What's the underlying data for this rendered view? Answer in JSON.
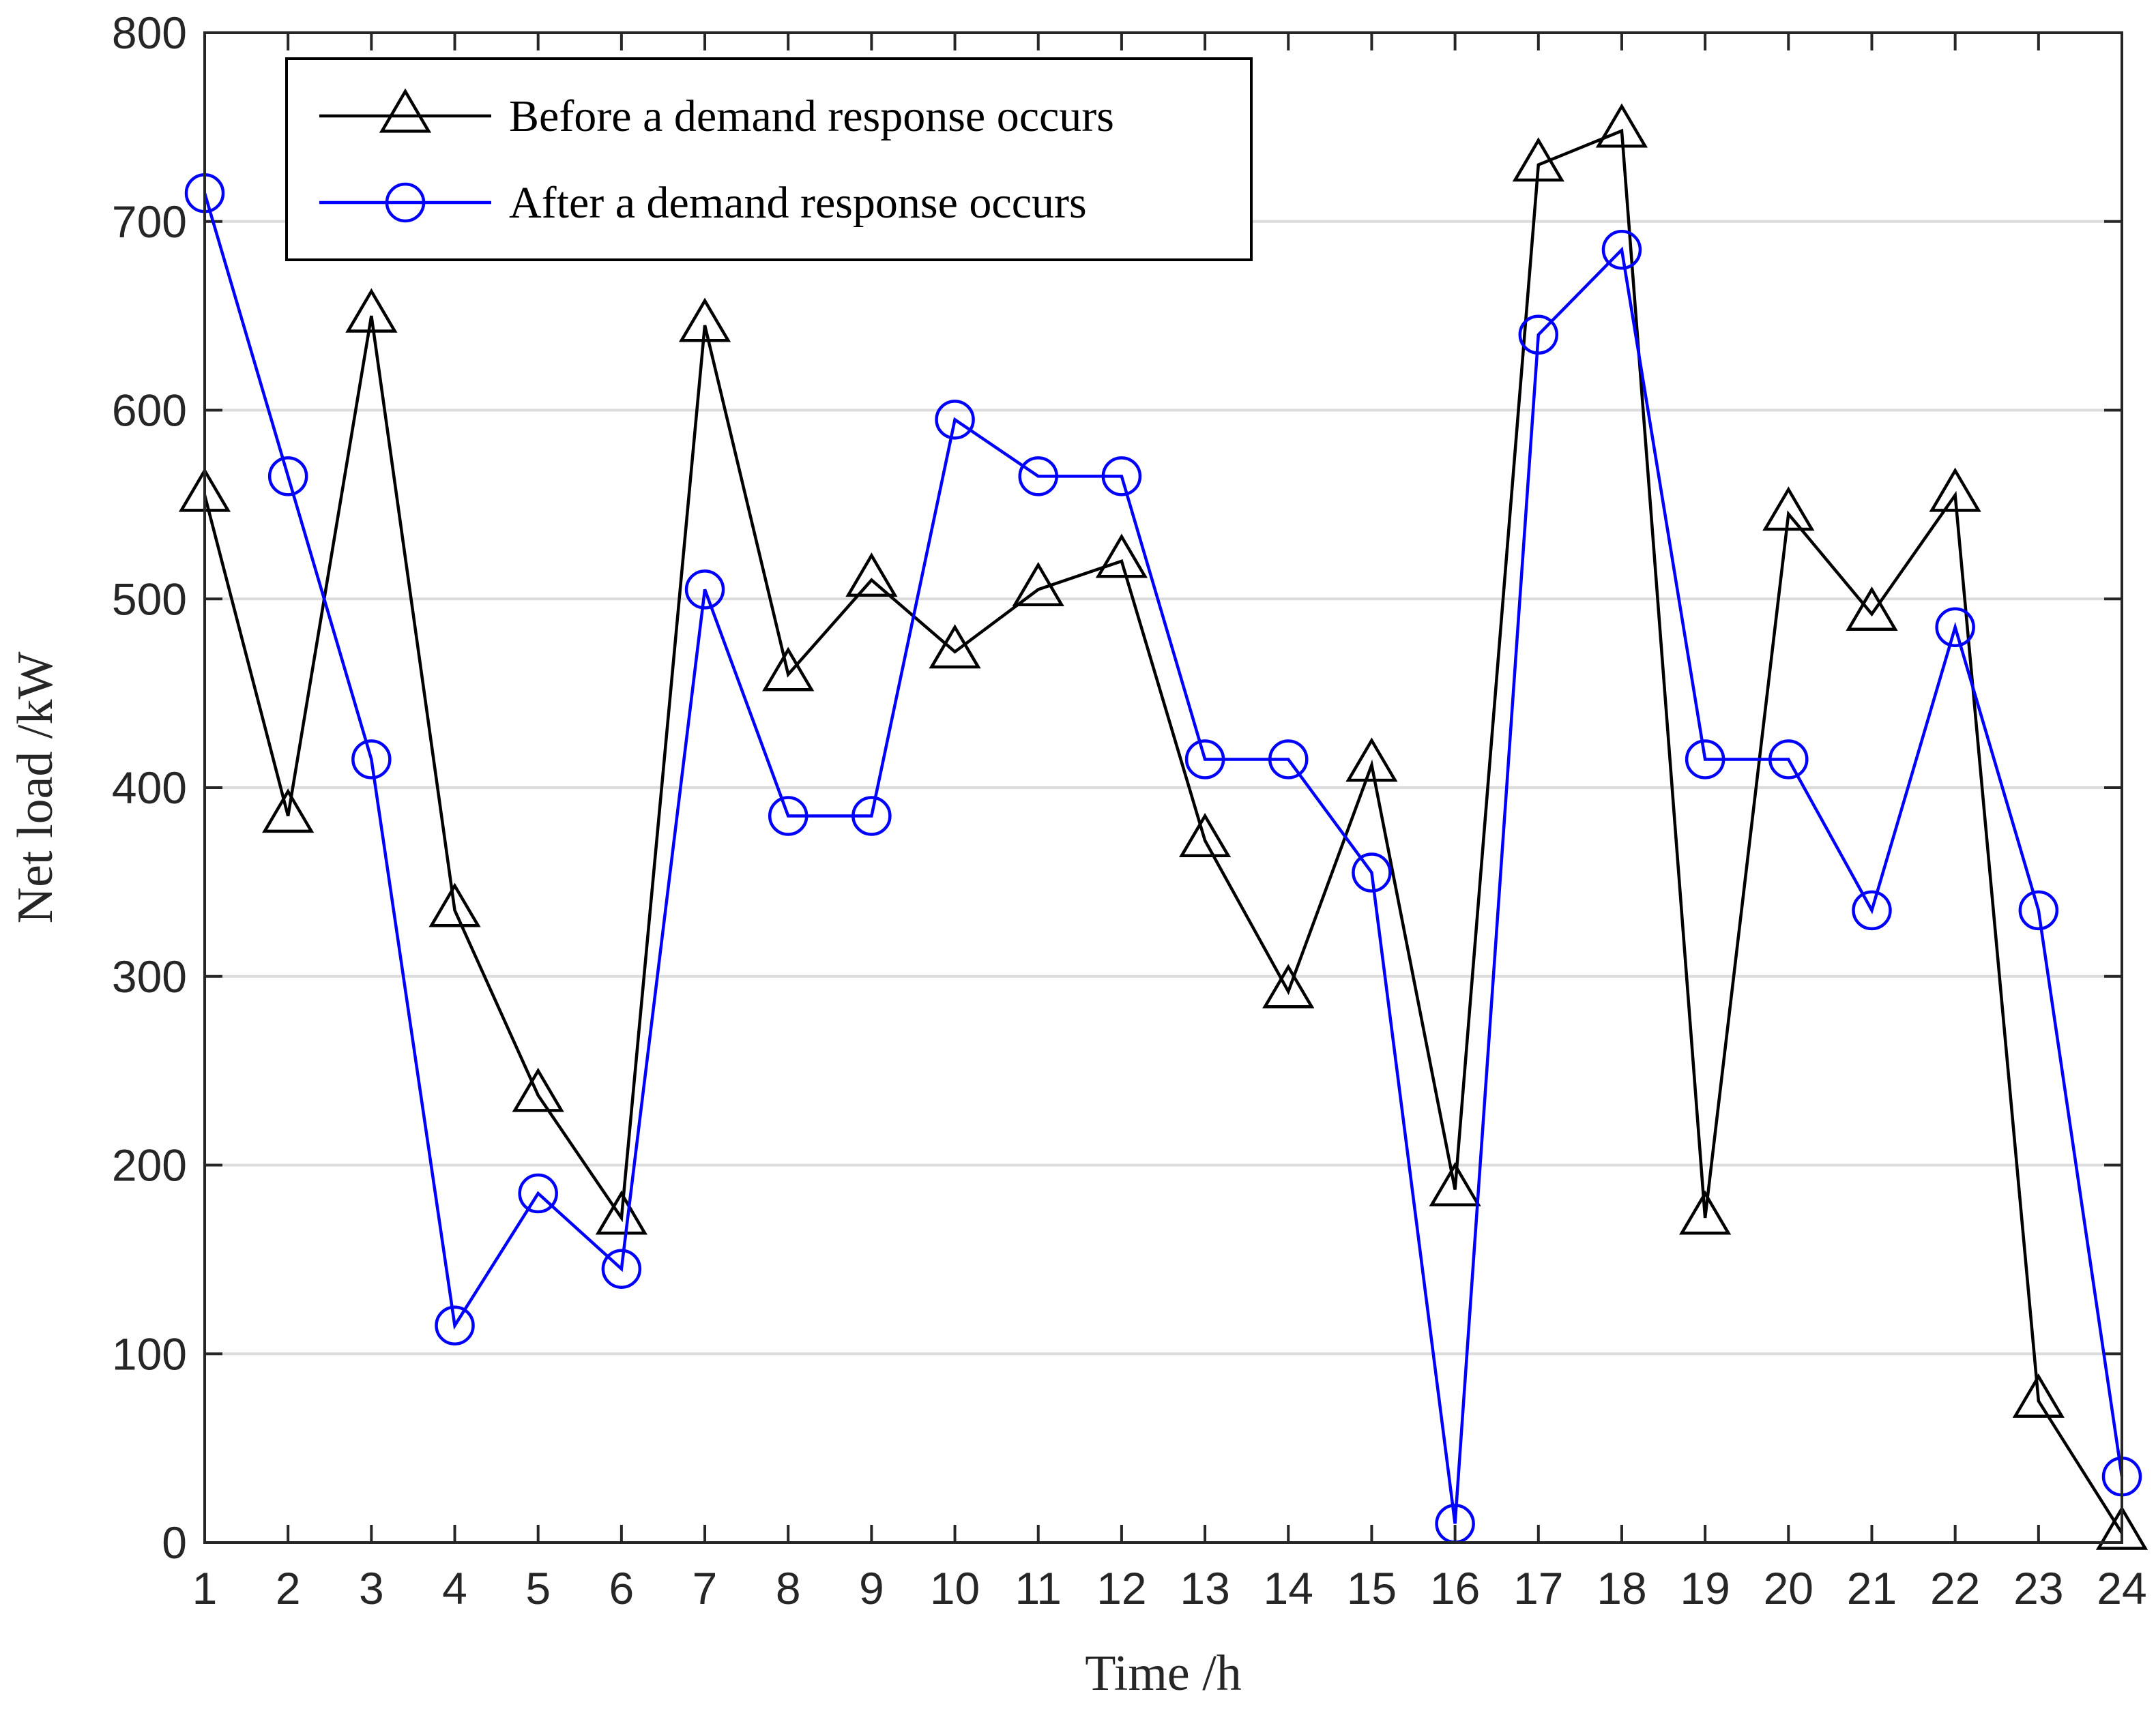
{
  "chart_data": {
    "type": "line",
    "title": "",
    "xlabel": "Time /h",
    "ylabel": "Net load /kW",
    "x": [
      1,
      2,
      3,
      4,
      5,
      6,
      7,
      8,
      9,
      10,
      11,
      12,
      13,
      14,
      15,
      16,
      17,
      18,
      19,
      20,
      21,
      22,
      23,
      24
    ],
    "xlim": [
      1,
      24
    ],
    "ylim": [
      0,
      800
    ],
    "yticks": [
      0,
      100,
      200,
      300,
      400,
      500,
      600,
      700,
      800
    ],
    "grid": "horizontal",
    "legend_position": "top-left",
    "series": [
      {
        "name": "Before a demand response occurs",
        "color": "#000000",
        "marker": "triangle",
        "values": [
          555,
          385,
          650,
          335,
          237,
          172,
          645,
          460,
          510,
          472,
          505,
          520,
          372,
          292,
          412,
          187,
          730,
          748,
          172,
          545,
          492,
          555,
          75,
          5
        ]
      },
      {
        "name": "After a demand response occurs",
        "color": "#0000ff",
        "marker": "circle",
        "values": [
          715,
          565,
          415,
          115,
          185,
          145,
          505,
          385,
          385,
          595,
          565,
          565,
          415,
          415,
          355,
          10,
          640,
          685,
          415,
          415,
          335,
          485,
          335,
          35
        ]
      }
    ]
  }
}
